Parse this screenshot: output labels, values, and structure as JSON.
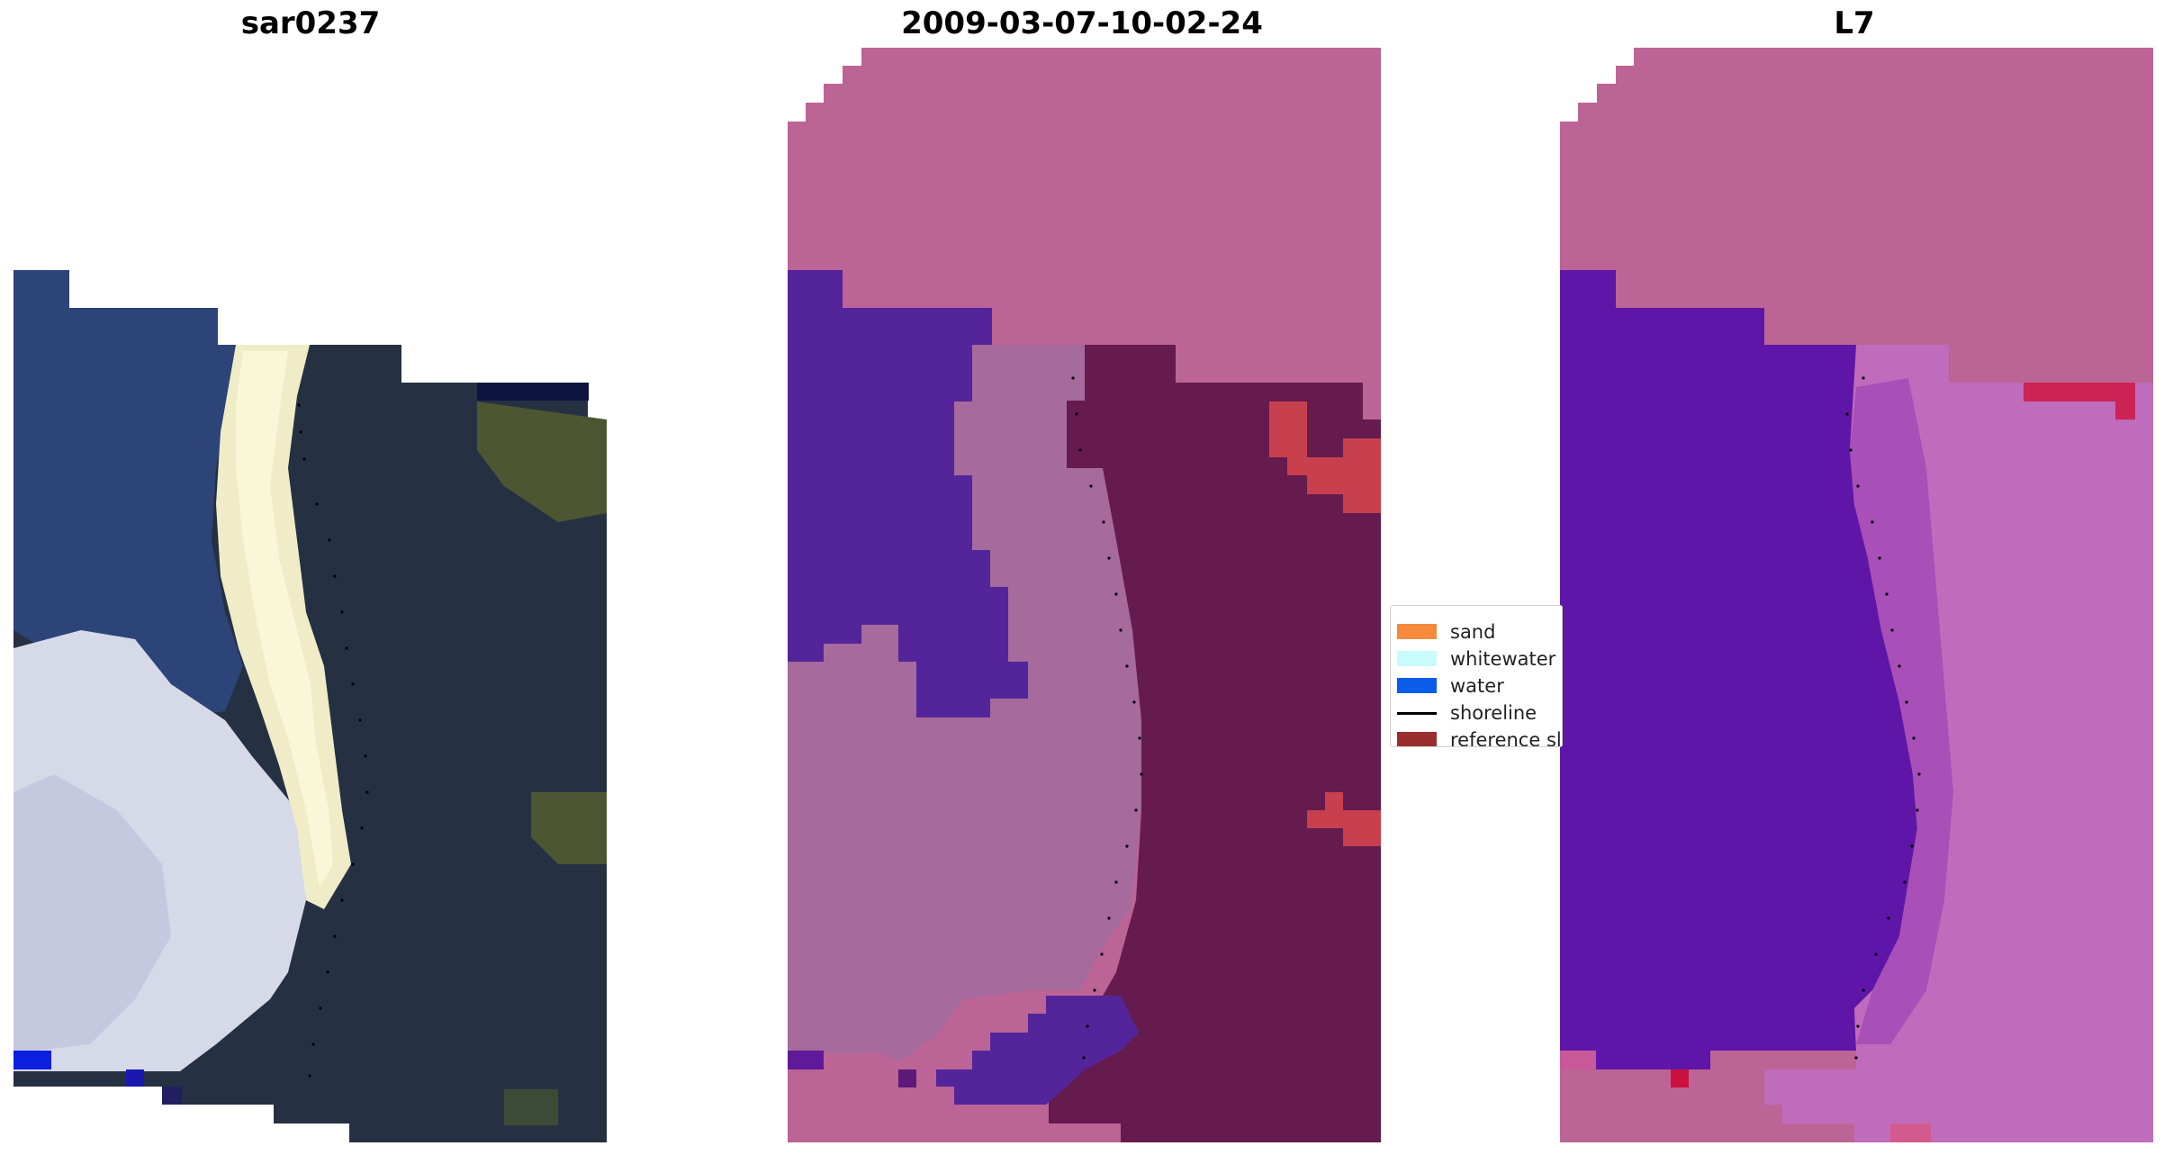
{
  "panels": [
    {
      "title": "sar0237"
    },
    {
      "title": "2009-03-07-10-02-24"
    },
    {
      "title": "L7"
    }
  ],
  "legend": {
    "items": [
      {
        "label": "sand",
        "kind": "patch",
        "color": "#f58a3c"
      },
      {
        "label": "whitewater",
        "kind": "patch",
        "color": "#c8fcfc"
      },
      {
        "label": "water",
        "kind": "patch",
        "color": "#0a5de8"
      },
      {
        "label": "shoreline",
        "kind": "line",
        "color": "#000000"
      },
      {
        "label": "reference sl",
        "kind": "patch",
        "color": "#9a2e2e"
      }
    ]
  },
  "colors": {
    "rgb_dark_land": "#243040",
    "rgb_vegetation": "#4a5630",
    "rgb_sea": "#2c4a82",
    "rgb_whitewater": "#d8dcec",
    "rgb_sand": "#f0ecc4",
    "class_background": "#bc6496",
    "class_water": "#53249a",
    "class_sand_overlay": "#a5689a",
    "class_land": "#651a4c",
    "class_bright_land": "#c63c50",
    "ndwi_water": "#5e15a8",
    "ndwi_land": "#c46cba",
    "ndwi_bright": "#cc2352"
  }
}
